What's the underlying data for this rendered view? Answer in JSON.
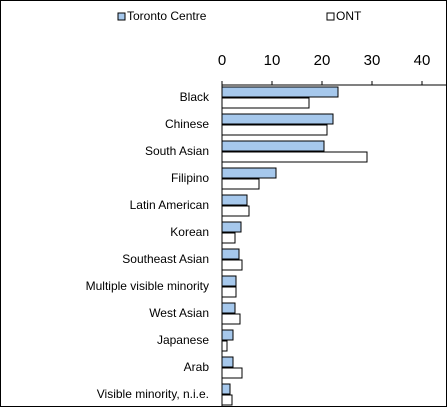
{
  "chart_data": {
    "type": "hbar",
    "categories": [
      "Black",
      "Chinese",
      "South Asian",
      "Filipino",
      "Latin American",
      "Korean",
      "Southeast Asian",
      "Multiple visible minority",
      "West Asian",
      "Japanese",
      "Arab",
      "Visible minority, n.i.e."
    ],
    "series": [
      {
        "name": "Toronto Centre",
        "color": "#a6c8ec",
        "values": [
          23.2,
          22.2,
          20.4,
          10.8,
          5,
          3.8,
          3.4,
          2.8,
          2.6,
          2.2,
          2.2,
          1.6
        ]
      },
      {
        "name": "ONT",
        "color": "#ffffff",
        "values": [
          17.4,
          21,
          29,
          7.4,
          5.4,
          2.6,
          4,
          2.8,
          3.6,
          1,
          4,
          2
        ]
      }
    ],
    "xlim": [
      0,
      40
    ],
    "xticks": [
      0,
      10,
      20,
      30,
      40
    ],
    "grid": false,
    "legend": "top"
  }
}
